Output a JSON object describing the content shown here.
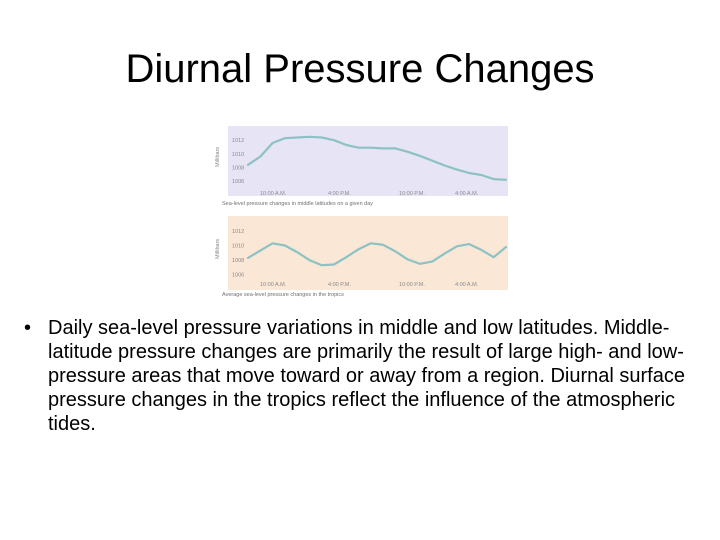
{
  "slide": {
    "title": "Diurnal Pressure Changes",
    "bullet": "Daily sea-level pressure variations in middle and low latitudes. Middle-latitude pressure changes are primarily the result of large high- and low-pressure areas that move toward or away from a region. Diurnal surface pressure changes in the tropics reflect the influence of the atmospheric tides."
  },
  "chart_data": [
    {
      "type": "line",
      "panel_color": "#e7e4f5",
      "line_color": "#8cc2c4",
      "ylabel": "Millibars",
      "y_ticks": [
        "1012",
        "1010",
        "1008",
        "1006"
      ],
      "ylim": [
        1005,
        1013.5
      ],
      "x_ticks": [
        "10:00 A.M.",
        "4:00 P.M.",
        "10:00 P.M.",
        "4:00 A.M."
      ],
      "caption": "Sea-level pressure changes in middle latitudes on a given day",
      "x": [
        0,
        1,
        2,
        3,
        4,
        5,
        6,
        7,
        8,
        9,
        10,
        11,
        12,
        13,
        14,
        15,
        16,
        17,
        18,
        19,
        20,
        21
      ],
      "values": [
        1008.4,
        1009.6,
        1011.6,
        1012.3,
        1012.4,
        1012.5,
        1012.4,
        1012.0,
        1011.3,
        1010.9,
        1010.9,
        1010.8,
        1010.8,
        1010.3,
        1009.7,
        1009.0,
        1008.3,
        1007.7,
        1007.2,
        1006.9,
        1006.3,
        1006.2
      ]
    },
    {
      "type": "line",
      "panel_color": "#fbe7d6",
      "line_color": "#8cc2c4",
      "ylabel": "Millibars",
      "y_ticks": [
        "1012",
        "1010",
        "1008",
        "1006"
      ],
      "ylim": [
        1005,
        1013.5
      ],
      "x_ticks": [
        "10:00 A.M.",
        "4:00 P.M.",
        "10:00 P.M.",
        "4:00 A.M."
      ],
      "caption": "Average sea-level pressure changes in the tropics",
      "x": [
        0,
        1,
        2,
        3,
        4,
        5,
        6,
        7,
        8,
        9,
        10,
        11,
        12,
        13,
        14,
        15,
        16,
        17,
        18,
        19,
        20,
        21
      ],
      "values": [
        1008.3,
        1009.3,
        1010.3,
        1010.0,
        1009.1,
        1008.0,
        1007.3,
        1007.4,
        1008.4,
        1009.5,
        1010.3,
        1010.1,
        1009.2,
        1008.1,
        1007.5,
        1007.8,
        1008.9,
        1009.9,
        1010.2,
        1009.4,
        1008.4,
        1009.8
      ]
    }
  ]
}
